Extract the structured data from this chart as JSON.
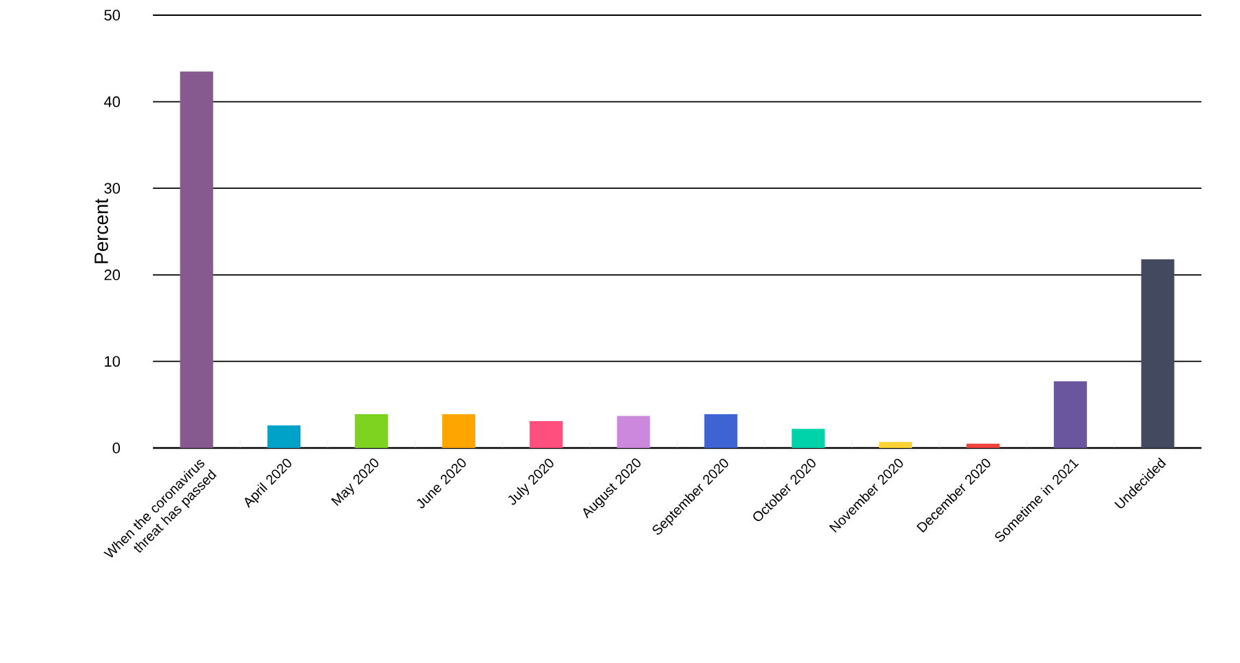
{
  "chart_data": {
    "type": "bar",
    "ylabel": "Percent",
    "categories": [
      "When the coronavirus threat has passed",
      "April 2020",
      "May 2020",
      "June 2020",
      "July 2020",
      "August 2020",
      "September 2020",
      "October 2020",
      "November 2020",
      "December 2020",
      "Sometime in 2021",
      "Undecided"
    ],
    "values": [
      43.5,
      2.6,
      3.9,
      3.9,
      3.1,
      3.7,
      3.9,
      2.2,
      0.7,
      0.5,
      7.7,
      21.8
    ],
    "colors": [
      "#865a8f",
      "#00a2c7",
      "#7ed321",
      "#ffa500",
      "#ff4f7f",
      "#cc88dd",
      "#3e63d2",
      "#00d3aa",
      "#ffd236",
      "#f0443c",
      "#6a559f",
      "#434a5f"
    ],
    "ylim": [
      0,
      50
    ],
    "yticks": [
      0,
      10,
      20,
      30,
      40,
      50
    ],
    "grid": "y"
  }
}
